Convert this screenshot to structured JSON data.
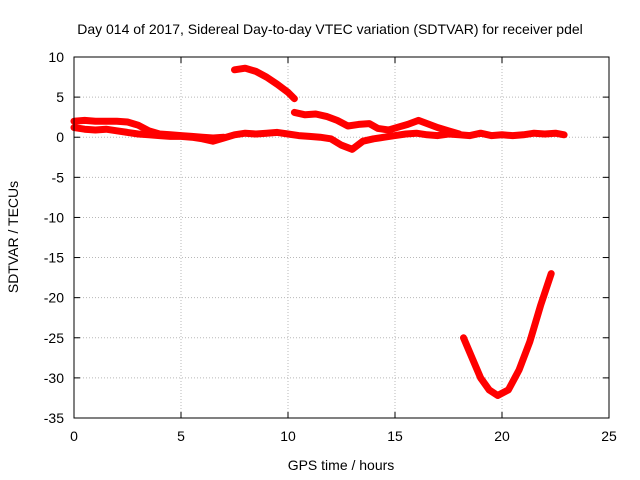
{
  "chart_data": {
    "type": "scatter",
    "title": "Day 014 of 2017, Sidereal Day-to-day VTEC variation (SDTVAR) for receiver pdel",
    "xlabel": "GPS time / hours",
    "ylabel": "SDTVAR / TECUs",
    "xlim": [
      0,
      25
    ],
    "ylim": [
      -35,
      10
    ],
    "xticks": [
      "0",
      "5",
      "10",
      "15",
      "20",
      "25"
    ],
    "yticks": [
      "10",
      "5",
      "0",
      "-5",
      "-10",
      "-15",
      "-20",
      "-25",
      "-30",
      "-35"
    ],
    "grid": true,
    "marker_color": "#ff0000",
    "series": [
      {
        "name": "track-1",
        "points": [
          [
            0,
            1.2
          ],
          [
            0.5,
            1.0
          ],
          [
            1,
            0.9
          ],
          [
            1.5,
            1.0
          ],
          [
            2,
            0.8
          ],
          [
            2.5,
            0.6
          ],
          [
            3,
            0.4
          ],
          [
            3.5,
            0.3
          ],
          [
            4,
            0.2
          ],
          [
            4.5,
            0.1
          ],
          [
            5,
            0.1
          ],
          [
            5.5,
            0
          ],
          [
            6,
            -0.2
          ],
          [
            6.5,
            -0.5
          ],
          [
            7,
            -0.1
          ],
          [
            7.5,
            0.3
          ],
          [
            8,
            0.5
          ],
          [
            8.5,
            0.4
          ],
          [
            9,
            0.5
          ],
          [
            9.5,
            0.6
          ],
          [
            10,
            0.4
          ],
          [
            10.5,
            0.2
          ],
          [
            11,
            0.1
          ],
          [
            11.5,
            0
          ],
          [
            12,
            -0.2
          ],
          [
            12.5,
            -1.0
          ],
          [
            13,
            -1.5
          ],
          [
            13.5,
            -0.5
          ],
          [
            14,
            -0.2
          ],
          [
            14.5,
            0
          ],
          [
            15,
            0.2
          ],
          [
            15.5,
            0.4
          ],
          [
            16,
            0.5
          ],
          [
            16.5,
            0.3
          ],
          [
            17,
            0.2
          ],
          [
            17.5,
            0.4
          ],
          [
            18,
            0.3
          ],
          [
            18.5,
            0.2
          ],
          [
            19,
            0.5
          ],
          [
            19.5,
            0.2
          ],
          [
            20,
            0.3
          ],
          [
            20.5,
            0.2
          ],
          [
            21,
            0.3
          ],
          [
            21.5,
            0.5
          ],
          [
            22,
            0.4
          ],
          [
            22.5,
            0.5
          ],
          [
            22.9,
            0.3
          ]
        ]
      },
      {
        "name": "track-2",
        "points": [
          [
            0,
            2.0
          ],
          [
            0.5,
            2.1
          ],
          [
            1,
            2.0
          ],
          [
            1.5,
            2.0
          ],
          [
            2,
            2.0
          ],
          [
            2.5,
            1.9
          ],
          [
            3,
            1.5
          ],
          [
            3.5,
            0.8
          ],
          [
            4,
            0.4
          ],
          [
            4.5,
            0.3
          ],
          [
            5,
            0.2
          ],
          [
            5.5,
            0.1
          ],
          [
            6,
            0
          ],
          [
            6.5,
            -0.1
          ],
          [
            7,
            0
          ]
        ]
      },
      {
        "name": "track-3",
        "points": [
          [
            7.5,
            8.4
          ],
          [
            8,
            8.6
          ],
          [
            8.5,
            8.2
          ],
          [
            9,
            7.5
          ],
          [
            9.5,
            6.6
          ],
          [
            10,
            5.6
          ],
          [
            10.3,
            4.8
          ]
        ]
      },
      {
        "name": "track-4",
        "points": [
          [
            10.3,
            3.1
          ],
          [
            10.8,
            2.8
          ],
          [
            11.3,
            2.9
          ],
          [
            11.8,
            2.6
          ],
          [
            12.3,
            2.1
          ],
          [
            12.8,
            1.4
          ],
          [
            13.3,
            1.6
          ],
          [
            13.8,
            1.7
          ],
          [
            14.2,
            1.1
          ],
          [
            14.7,
            0.9
          ],
          [
            15.2,
            1.3
          ],
          [
            15.6,
            1.6
          ],
          [
            16.1,
            2.1
          ],
          [
            16.6,
            1.6
          ],
          [
            17,
            1.2
          ],
          [
            17.5,
            0.8
          ],
          [
            18,
            0.4
          ]
        ]
      },
      {
        "name": "track-5",
        "points": [
          [
            18.2,
            -25
          ],
          [
            18.6,
            -27.5
          ],
          [
            19,
            -30
          ],
          [
            19.4,
            -31.5
          ],
          [
            19.8,
            -32.2
          ],
          [
            20.3,
            -31.5
          ],
          [
            20.8,
            -29
          ],
          [
            21.3,
            -25.5
          ],
          [
            21.8,
            -21
          ],
          [
            22.3,
            -17
          ]
        ]
      }
    ]
  }
}
